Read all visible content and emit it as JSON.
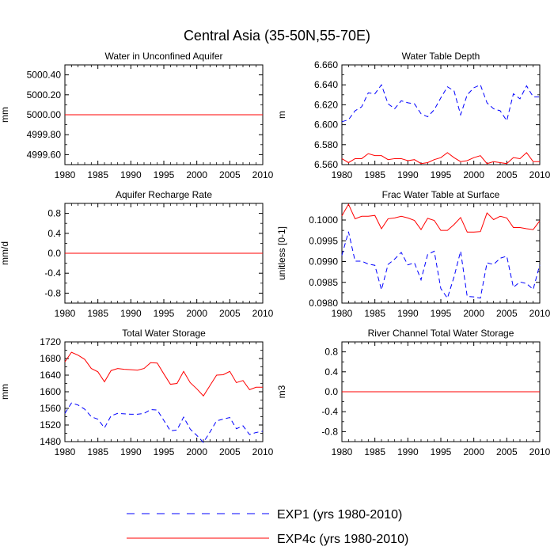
{
  "figure": {
    "title": "Central Asia (35-50N,55-70E)",
    "legend": [
      {
        "label": "EXP1 (yrs 1980-2010)",
        "color": "#0000ff",
        "dash": "dashed"
      },
      {
        "label": "EXP4c (yrs 1980-2010)",
        "color": "#ff0000",
        "dash": "solid"
      }
    ]
  },
  "chart_data": [
    {
      "type": "line",
      "title": "Water in Unconfined Aquifer",
      "ylabel": "mm",
      "xlim": [
        1980,
        2010
      ],
      "ylim": [
        4999.5,
        5000.5
      ],
      "xticks": [
        1980,
        1985,
        1990,
        1995,
        2000,
        2005,
        2010
      ],
      "xtick_labels": [
        "1980",
        "1985",
        "1990",
        "1995",
        "2000",
        "2005",
        "2010"
      ],
      "yticks": [
        4999.6,
        4999.8,
        5000.0,
        5000.2,
        5000.4
      ],
      "ytick_labels": [
        "4999.60",
        "4999.80",
        "5000.00",
        "5000.20",
        "5000.40"
      ],
      "x": [
        1980,
        1981,
        1982,
        1983,
        1984,
        1985,
        1986,
        1987,
        1988,
        1989,
        1990,
        1991,
        1992,
        1993,
        1994,
        1995,
        1996,
        1997,
        1998,
        1999,
        2000,
        2001,
        2002,
        2003,
        2004,
        2005,
        2006,
        2007,
        2008,
        2009,
        2010
      ],
      "series": [
        {
          "name": "EXP1",
          "color": "#0000ff",
          "dash": "dashed",
          "values": [
            5000,
            5000,
            5000,
            5000,
            5000,
            5000,
            5000,
            5000,
            5000,
            5000,
            5000,
            5000,
            5000,
            5000,
            5000,
            5000,
            5000,
            5000,
            5000,
            5000,
            5000,
            5000,
            5000,
            5000,
            5000,
            5000,
            5000,
            5000,
            5000,
            5000,
            5000
          ]
        },
        {
          "name": "EXP4c",
          "color": "#ff0000",
          "dash": "solid",
          "values": [
            5000,
            5000,
            5000,
            5000,
            5000,
            5000,
            5000,
            5000,
            5000,
            5000,
            5000,
            5000,
            5000,
            5000,
            5000,
            5000,
            5000,
            5000,
            5000,
            5000,
            5000,
            5000,
            5000,
            5000,
            5000,
            5000,
            5000,
            5000,
            5000,
            5000,
            5000
          ]
        }
      ]
    },
    {
      "type": "line",
      "title": "Water Table Depth",
      "ylabel": "m",
      "xlim": [
        1980,
        2010
      ],
      "ylim": [
        6.56,
        6.66
      ],
      "xticks": [
        1980,
        1985,
        1990,
        1995,
        2000,
        2005,
        2010
      ],
      "xtick_labels": [
        "1980",
        "1985",
        "1990",
        "1995",
        "2000",
        "2005",
        "2010"
      ],
      "yticks": [
        6.56,
        6.58,
        6.6,
        6.62,
        6.64,
        6.66
      ],
      "ytick_labels": [
        "6.560",
        "6.580",
        "6.600",
        "6.620",
        "6.640",
        "6.660"
      ],
      "x": [
        1980,
        1981,
        1982,
        1983,
        1984,
        1985,
        1986,
        1987,
        1988,
        1989,
        1990,
        1991,
        1992,
        1993,
        1994,
        1995,
        1996,
        1997,
        1998,
        1999,
        2000,
        2001,
        2002,
        2003,
        2004,
        2005,
        2006,
        2007,
        2008,
        2009,
        2010
      ],
      "series": [
        {
          "name": "EXP1",
          "color": "#0000ff",
          "dash": "dashed",
          "values": [
            6.603,
            6.605,
            6.614,
            6.618,
            6.632,
            6.631,
            6.64,
            6.621,
            6.616,
            6.624,
            6.622,
            6.621,
            6.611,
            6.608,
            6.615,
            6.627,
            6.638,
            6.634,
            6.61,
            6.63,
            6.637,
            6.64,
            6.622,
            6.616,
            6.614,
            6.604,
            6.631,
            6.626,
            6.639,
            6.628,
            6.628
          ]
        },
        {
          "name": "EXP4c",
          "color": "#ff0000",
          "dash": "solid",
          "values": [
            6.566,
            6.562,
            6.566,
            6.566,
            6.571,
            6.569,
            6.569,
            6.565,
            6.566,
            6.566,
            6.564,
            6.565,
            6.561,
            6.562,
            6.565,
            6.567,
            6.572,
            6.567,
            6.563,
            6.564,
            6.567,
            6.569,
            6.561,
            6.563,
            6.562,
            6.561,
            6.567,
            6.566,
            6.572,
            6.563,
            6.563
          ]
        }
      ]
    },
    {
      "type": "line",
      "title": "Aquifer Recharge Rate",
      "ylabel": "mm/d",
      "xlim": [
        1980,
        2010
      ],
      "ylim": [
        -1.0,
        1.0
      ],
      "xticks": [
        1980,
        1985,
        1990,
        1995,
        2000,
        2005,
        2010
      ],
      "xtick_labels": [
        "1980",
        "1985",
        "1990",
        "1995",
        "2000",
        "2005",
        "2010"
      ],
      "yticks": [
        -0.8,
        -0.4,
        0.0,
        0.4,
        0.8
      ],
      "ytick_labels": [
        "-0.8",
        "-0.4",
        "0.0",
        "0.4",
        "0.8"
      ],
      "x": [
        1980,
        1981,
        1982,
        1983,
        1984,
        1985,
        1986,
        1987,
        1988,
        1989,
        1990,
        1991,
        1992,
        1993,
        1994,
        1995,
        1996,
        1997,
        1998,
        1999,
        2000,
        2001,
        2002,
        2003,
        2004,
        2005,
        2006,
        2007,
        2008,
        2009,
        2010
      ],
      "series": [
        {
          "name": "EXP1",
          "color": "#0000ff",
          "dash": "dashed",
          "values": [
            0,
            0,
            0,
            0,
            0,
            0,
            0,
            0,
            0,
            0,
            0,
            0,
            0,
            0,
            0,
            0,
            0,
            0,
            0,
            0,
            0,
            0,
            0,
            0,
            0,
            0,
            0,
            0,
            0,
            0,
            0
          ]
        },
        {
          "name": "EXP4c",
          "color": "#ff0000",
          "dash": "solid",
          "values": [
            0,
            0,
            0,
            0,
            0,
            0,
            0,
            0,
            0,
            0,
            0,
            0,
            0,
            0,
            0,
            0,
            0,
            0,
            0,
            0,
            0,
            0,
            0,
            0,
            0,
            0,
            0,
            0,
            0,
            0,
            0
          ]
        }
      ]
    },
    {
      "type": "line",
      "title": "Frac Water Table at Surface",
      "ylabel": "unitless [0-1]",
      "xlim": [
        1980,
        2010
      ],
      "ylim": [
        0.098,
        0.1004
      ],
      "xticks": [
        1980,
        1985,
        1990,
        1995,
        2000,
        2005,
        2010
      ],
      "xtick_labels": [
        "1980",
        "1985",
        "1990",
        "1995",
        "2000",
        "2005",
        "2010"
      ],
      "yticks": [
        0.098,
        0.0985,
        0.099,
        0.0995,
        0.1
      ],
      "ytick_labels": [
        "0.0980",
        "0.0985",
        "0.0990",
        "0.0995",
        "0.1000"
      ],
      "x": [
        1980,
        1981,
        1982,
        1983,
        1984,
        1985,
        1986,
        1987,
        1988,
        1989,
        1990,
        1991,
        1992,
        1993,
        1994,
        1995,
        1996,
        1997,
        1998,
        1999,
        2000,
        2001,
        2002,
        2003,
        2004,
        2005,
        2006,
        2007,
        2008,
        2009,
        2010
      ],
      "series": [
        {
          "name": "EXP1",
          "color": "#0000ff",
          "dash": "dashed",
          "values": [
            0.09915,
            0.09972,
            0.09901,
            0.09901,
            0.09894,
            0.09891,
            0.09832,
            0.09893,
            0.09906,
            0.09922,
            0.09892,
            0.09897,
            0.09856,
            0.09917,
            0.09925,
            0.09835,
            0.09812,
            0.09863,
            0.09925,
            0.09816,
            0.09815,
            0.09812,
            0.09897,
            0.09893,
            0.09908,
            0.09913,
            0.09838,
            0.09851,
            0.09847,
            0.09833,
            0.09892
          ]
        },
        {
          "name": "EXP4c",
          "color": "#ff0000",
          "dash": "solid",
          "values": [
            0.1001,
            0.10038,
            0.10003,
            0.10009,
            0.10009,
            0.10011,
            0.09979,
            0.10003,
            0.10005,
            0.10009,
            0.10005,
            0.09999,
            0.09977,
            0.10004,
            0.09999,
            0.09975,
            0.09975,
            0.09989,
            0.10006,
            0.09971,
            0.09971,
            0.09972,
            0.10017,
            0.10001,
            0.10009,
            0.10005,
            0.09982,
            0.09982,
            0.09979,
            0.09977,
            0.09998
          ]
        }
      ]
    },
    {
      "type": "line",
      "title": "Total Water Storage",
      "ylabel": "mm",
      "xlim": [
        1980,
        2010
      ],
      "ylim": [
        1480,
        1720
      ],
      "xticks": [
        1980,
        1985,
        1990,
        1995,
        2000,
        2005,
        2010
      ],
      "xtick_labels": [
        "1980",
        "1985",
        "1990",
        "1995",
        "2000",
        "2005",
        "2010"
      ],
      "yticks": [
        1480,
        1520,
        1560,
        1600,
        1640,
        1680,
        1720
      ],
      "ytick_labels": [
        "1480",
        "1520",
        "1560",
        "1600",
        "1640",
        "1680",
        "1720"
      ],
      "x": [
        1980,
        1981,
        1982,
        1983,
        1984,
        1985,
        1986,
        1987,
        1988,
        1989,
        1990,
        1991,
        1992,
        1993,
        1994,
        1995,
        1996,
        1997,
        1998,
        1999,
        2000,
        2001,
        2002,
        2003,
        2004,
        2005,
        2006,
        2007,
        2008,
        2009,
        2010
      ],
      "series": [
        {
          "name": "EXP1",
          "color": "#0000ff",
          "dash": "dashed",
          "values": [
            1548,
            1573,
            1568,
            1558,
            1540,
            1534,
            1513,
            1542,
            1548,
            1547,
            1546,
            1546,
            1548,
            1557,
            1556,
            1531,
            1506,
            1508,
            1539,
            1510,
            1495,
            1478,
            1503,
            1530,
            1534,
            1538,
            1511,
            1518,
            1497,
            1502,
            1505
          ]
        },
        {
          "name": "EXP4c",
          "color": "#ff0000",
          "dash": "solid",
          "values": [
            1672,
            1695,
            1688,
            1678,
            1656,
            1648,
            1624,
            1651,
            1656,
            1654,
            1653,
            1652,
            1656,
            1670,
            1669,
            1643,
            1618,
            1620,
            1649,
            1622,
            1607,
            1590,
            1615,
            1640,
            1641,
            1649,
            1622,
            1627,
            1605,
            1611,
            1611
          ]
        }
      ]
    },
    {
      "type": "line",
      "title": "River Channel Total Water Storage",
      "ylabel": "m3",
      "xlim": [
        1980,
        2010
      ],
      "ylim": [
        -1.0,
        1.0
      ],
      "xticks": [
        1980,
        1985,
        1990,
        1995,
        2000,
        2005,
        2010
      ],
      "xtick_labels": [
        "1980",
        "1985",
        "1990",
        "1995",
        "2000",
        "2005",
        "2010"
      ],
      "yticks": [
        -0.8,
        -0.4,
        0.0,
        0.4,
        0.8
      ],
      "ytick_labels": [
        "-0.8",
        "-0.4",
        "0.0",
        "0.4",
        "0.8"
      ],
      "x": [
        1980,
        1981,
        1982,
        1983,
        1984,
        1985,
        1986,
        1987,
        1988,
        1989,
        1990,
        1991,
        1992,
        1993,
        1994,
        1995,
        1996,
        1997,
        1998,
        1999,
        2000,
        2001,
        2002,
        2003,
        2004,
        2005,
        2006,
        2007,
        2008,
        2009,
        2010
      ],
      "series": [
        {
          "name": "EXP1",
          "color": "#0000ff",
          "dash": "dashed",
          "values": [
            0,
            0,
            0,
            0,
            0,
            0,
            0,
            0,
            0,
            0,
            0,
            0,
            0,
            0,
            0,
            0,
            0,
            0,
            0,
            0,
            0,
            0,
            0,
            0,
            0,
            0,
            0,
            0,
            0,
            0,
            0
          ]
        },
        {
          "name": "EXP4c",
          "color": "#ff0000",
          "dash": "solid",
          "values": [
            0,
            0,
            0,
            0,
            0,
            0,
            0,
            0,
            0,
            0,
            0,
            0,
            0,
            0,
            0,
            0,
            0,
            0,
            0,
            0,
            0,
            0,
            0,
            0,
            0,
            0,
            0,
            0,
            0,
            0,
            0
          ]
        }
      ]
    }
  ]
}
